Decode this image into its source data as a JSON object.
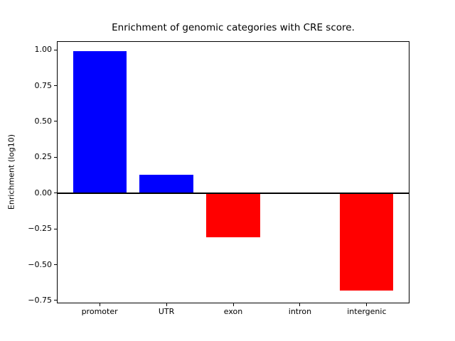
{
  "chart_data": {
    "type": "bar",
    "title": "Enrichment of genomic categories with CRE score.",
    "xlabel": "",
    "ylabel": "Enrichment (log10)",
    "categories": [
      "promoter",
      "UTR",
      "exon",
      "intron",
      "intergenic"
    ],
    "values": [
      0.99,
      0.13,
      -0.31,
      0.0,
      -0.68
    ],
    "bar_colors": [
      "#0000ff",
      "#0000ff",
      "#ff0000",
      "#ff0000",
      "#ff0000"
    ],
    "positive_color": "#0000ff",
    "negative_color": "#ff0000",
    "baseline": 0,
    "zero_line_color": "#000000",
    "axis_color": "#000000",
    "background_color": "#ffffff",
    "grid": false,
    "legend": false,
    "ylim": [
      -0.77,
      1.06
    ],
    "xlim": [
      -0.64,
      4.64
    ],
    "bar_width_fraction": 0.8,
    "yticks": [
      1.0,
      0.75,
      0.5,
      0.25,
      0.0,
      -0.25,
      -0.5,
      -0.75
    ],
    "ytick_labels": [
      "1.00",
      "0.75",
      "0.50",
      "0.25",
      "0.00",
      "−0.25",
      "−0.50",
      "−0.75"
    ]
  }
}
